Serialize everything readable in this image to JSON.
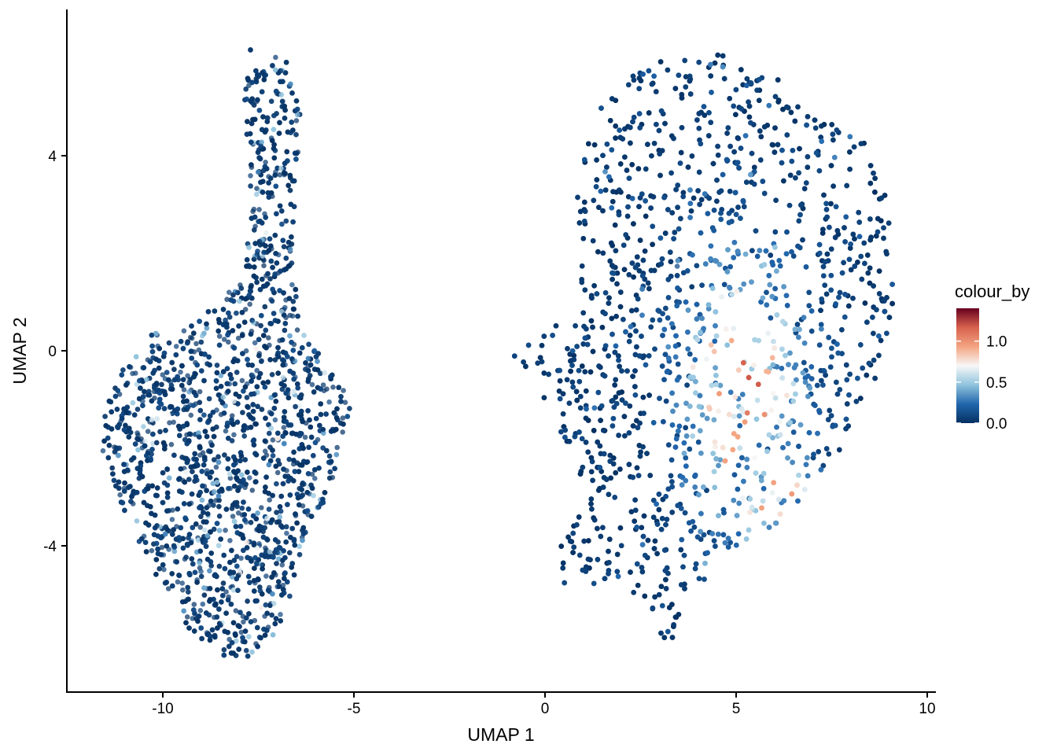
{
  "chart_data": {
    "type": "scatter",
    "title": "",
    "xlabel": "UMAP 1",
    "ylabel": "UMAP 2",
    "xlim": [
      -12.5,
      10.2
    ],
    "ylim": [
      -7.1,
      6.9
    ],
    "x_ticks": [
      {
        "value": -10,
        "label": "-10"
      },
      {
        "value": -5,
        "label": "-5"
      },
      {
        "value": 0,
        "label": "0"
      },
      {
        "value": 5,
        "label": "5"
      },
      {
        "value": 10,
        "label": "10"
      }
    ],
    "y_ticks": [
      {
        "value": -4,
        "label": "-4"
      },
      {
        "value": 0,
        "label": "0"
      },
      {
        "value": 4,
        "label": "4"
      }
    ],
    "grid": false,
    "legend": {
      "title": "colour_by",
      "position": "right",
      "scale": "continuous",
      "range": [
        0.0,
        1.4
      ],
      "breaks": [
        {
          "value": 0.0,
          "label": "0.0"
        },
        {
          "value": 0.5,
          "label": "0.5"
        },
        {
          "value": 1.0,
          "label": "1.0"
        }
      ],
      "color_stops": [
        {
          "value": 0.0,
          "color": "#053061"
        },
        {
          "value": 0.23,
          "color": "#2166ac"
        },
        {
          "value": 0.47,
          "color": "#92c5de"
        },
        {
          "value": 0.7,
          "color": "#f7f7f7"
        },
        {
          "value": 0.93,
          "color": "#f4a582"
        },
        {
          "value": 1.17,
          "color": "#d6604d"
        },
        {
          "value": 1.4,
          "color": "#67001f"
        }
      ]
    },
    "clusters": [
      {
        "name": "left cluster",
        "x_range": [
          -11.6,
          -5.0
        ],
        "y_range": [
          -6.4,
          6.3
        ],
        "typical_value": 0.1,
        "max_value": 0.7
      },
      {
        "name": "right cluster",
        "x_range": [
          -1.0,
          9.2
        ],
        "y_range": [
          -5.9,
          6.1
        ],
        "typical_value": 0.15,
        "max_value": 1.4,
        "high_expression_region": {
          "x": [
            3.5,
            7.5
          ],
          "y": [
            -3.8,
            2.4
          ]
        }
      }
    ]
  }
}
